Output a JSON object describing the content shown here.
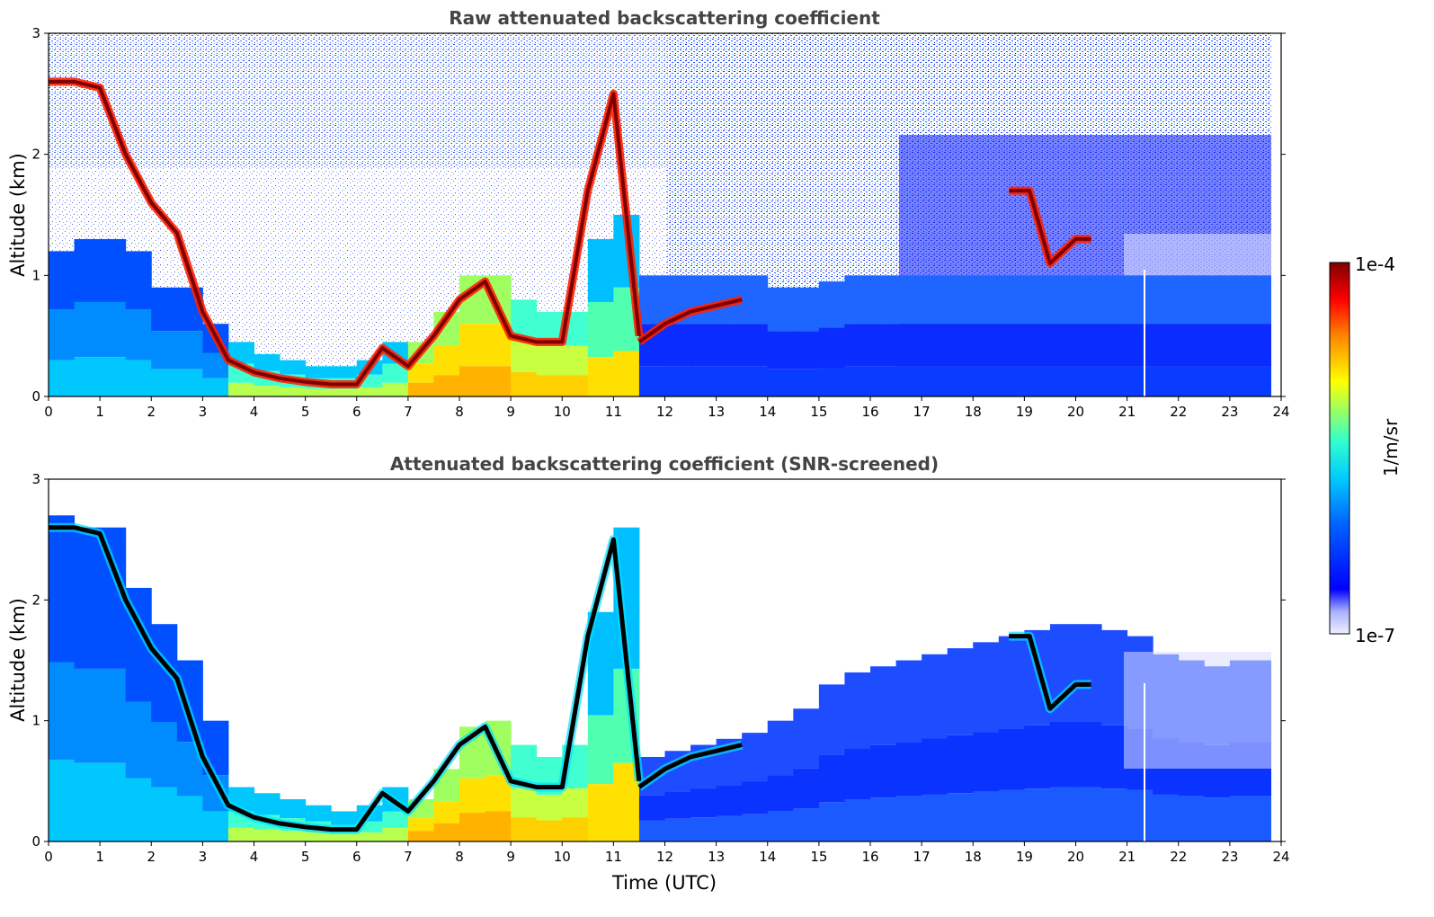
{
  "colors": {
    "jet": [
      "#00007f",
      "#0000ff",
      "#007fff",
      "#00ffff",
      "#7fff7f",
      "#ffff00",
      "#ff7f00",
      "#ff0000",
      "#7f0000"
    ],
    "screened_cloud": "#000000",
    "missing_gap": "#ffffff"
  },
  "chart_data": [
    {
      "type": "heatmap",
      "title": "Raw attenuated backscattering coefficient",
      "xlabel": "",
      "ylabel": "Altitude (km)",
      "xlim": [
        0,
        24
      ],
      "ylim": [
        0,
        3
      ],
      "x_ticks": [
        "0",
        "1",
        "2",
        "3",
        "4",
        "5",
        "6",
        "7",
        "8",
        "9",
        "10",
        "11",
        "12",
        "13",
        "14",
        "15",
        "16",
        "17",
        "18",
        "19",
        "20",
        "21",
        "22",
        "23",
        "24"
      ],
      "y_ticks": [
        "0",
        "1",
        "2",
        "3"
      ],
      "layers": [
        {
          "x": [
            0,
            0.5,
            1,
            1.5,
            2,
            2.5,
            3,
            3.5,
            4,
            4.5,
            5,
            5.5,
            6,
            6.5,
            7,
            7.5,
            8,
            8.5,
            9,
            9.5,
            10,
            10.5,
            11,
            11.5
          ],
          "y": [
            2.6,
            2.6,
            2.55,
            2.0,
            1.6,
            1.35,
            0.7,
            0.3,
            0.2,
            0.15,
            0.12,
            0.1,
            0.1,
            0.4,
            0.25,
            0.5,
            0.8,
            0.95,
            0.5,
            0.45,
            0.45,
            1.7,
            2.5,
            0.5
          ]
        },
        {
          "x": [
            11.5,
            12,
            12.5,
            13,
            13.5
          ],
          "y": [
            0.45,
            0.6,
            0.7,
            0.75,
            0.8
          ]
        },
        {
          "x": [
            18.7,
            19.1,
            19.5,
            20,
            20.3
          ],
          "y": [
            1.7,
            1.7,
            1.1,
            1.3,
            1.3
          ]
        }
      ],
      "aerosol_top_km": [
        1.2,
        1.3,
        1.3,
        1.2,
        0.9,
        0.9,
        0.6,
        0.45,
        0.35,
        0.3,
        0.25,
        0.25,
        0.3,
        0.45,
        0.45,
        0.7,
        1.0,
        1.0,
        0.8,
        0.7,
        0.7,
        1.3,
        1.5,
        1.0,
        1.0,
        1.0,
        1.0,
        1.0,
        0.9,
        0.9,
        0.95,
        1.0,
        1.0,
        1.0,
        1.0,
        1.0,
        1.0,
        1.0,
        1.0,
        1.0,
        1.0,
        1.0,
        1.0,
        1.0,
        1.0,
        1.0,
        1.0,
        1.0
      ],
      "missing_column_utc": 21.35,
      "data_end_utc": 23.8
    },
    {
      "type": "heatmap",
      "title": "Attenuated backscattering coefficient (SNR-screened)",
      "xlabel": "Time (UTC)",
      "ylabel": "Altitude (km)",
      "xlim": [
        0,
        24
      ],
      "ylim": [
        0,
        3
      ],
      "x_ticks": [
        "0",
        "1",
        "2",
        "3",
        "4",
        "5",
        "6",
        "7",
        "8",
        "9",
        "10",
        "11",
        "12",
        "13",
        "14",
        "15",
        "16",
        "17",
        "18",
        "19",
        "20",
        "21",
        "22",
        "23",
        "24"
      ],
      "y_ticks": [
        "0",
        "1",
        "2",
        "3"
      ],
      "signal_top_km": [
        2.7,
        2.6,
        2.6,
        2.1,
        1.8,
        1.5,
        1.0,
        0.45,
        0.4,
        0.35,
        0.3,
        0.25,
        0.3,
        0.45,
        0.35,
        0.6,
        0.95,
        1.0,
        0.8,
        0.7,
        0.8,
        1.9,
        2.6,
        0.7,
        0.75,
        0.8,
        0.85,
        0.9,
        1.0,
        1.1,
        1.3,
        1.4,
        1.45,
        1.5,
        1.55,
        1.6,
        1.65,
        1.7,
        1.75,
        1.8,
        1.8,
        1.75,
        1.7,
        1.55,
        1.5,
        1.45,
        1.5,
        1.5
      ],
      "missing_column_utc": 21.35,
      "data_end_utc": 23.8
    }
  ],
  "colorbar": {
    "label": "1/m/sr",
    "top_label": "1e-4",
    "bottom_label": "1e-7",
    "scale": "log",
    "range": [
      1e-07,
      0.0001
    ]
  }
}
